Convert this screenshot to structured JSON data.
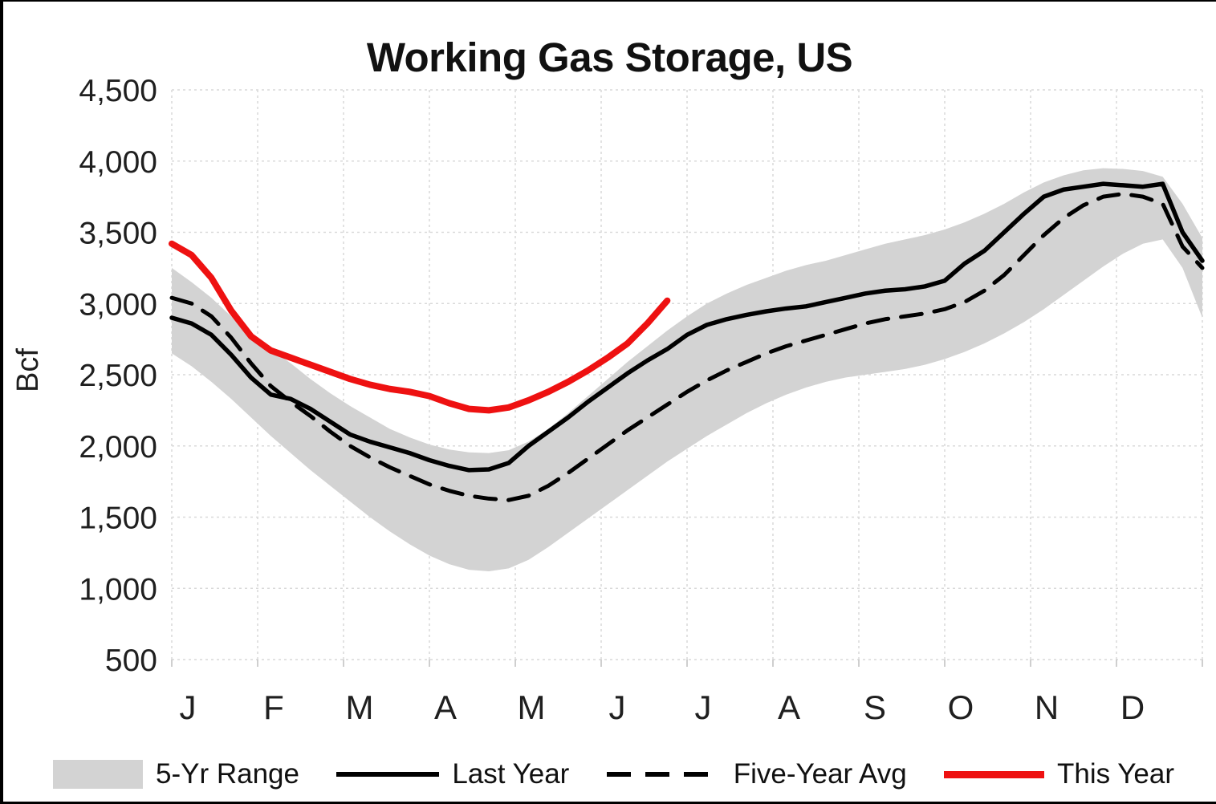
{
  "legend": [
    {
      "label": "5-Yr Range",
      "style": "band",
      "color": "#d3d3d3"
    },
    {
      "label": "Last Year",
      "style": "solid",
      "color": "#000000"
    },
    {
      "label": "Five-Year Avg",
      "style": "dashed",
      "color": "#000000"
    },
    {
      "label": "This Year",
      "style": "solid",
      "color": "#ee1111"
    }
  ],
  "chart_data": {
    "type": "line",
    "title": "Working Gas Storage, US",
    "ylabel": "Bcf",
    "ylim": [
      500,
      4500
    ],
    "y_tick_step": 500,
    "y_ticks": [
      "500",
      "1,000",
      "1,500",
      "2,000",
      "2,500",
      "3,000",
      "3,500",
      "4,000",
      "4,500"
    ],
    "x_ticks": [
      "J",
      "F",
      "M",
      "A",
      "M",
      "J",
      "J",
      "A",
      "S",
      "O",
      "N",
      "D"
    ],
    "x_unit": "weeks",
    "weeks": 52,
    "grid": true,
    "legend_position": "bottom",
    "band": {
      "name": "5-Yr Range",
      "color": "#d3d3d3",
      "upper": [
        3250,
        3150,
        3040,
        2910,
        2790,
        2680,
        2580,
        2470,
        2370,
        2280,
        2200,
        2120,
        2060,
        2010,
        1975,
        1955,
        1950,
        1970,
        2030,
        2120,
        2230,
        2350,
        2470,
        2590,
        2700,
        2810,
        2910,
        3000,
        3070,
        3130,
        3180,
        3230,
        3270,
        3300,
        3340,
        3380,
        3420,
        3450,
        3480,
        3520,
        3570,
        3630,
        3700,
        3780,
        3850,
        3900,
        3935,
        3950,
        3945,
        3930,
        3890,
        3700,
        3460
      ],
      "lower": [
        2650,
        2560,
        2450,
        2330,
        2200,
        2070,
        1950,
        1830,
        1720,
        1610,
        1500,
        1400,
        1310,
        1230,
        1170,
        1130,
        1120,
        1140,
        1200,
        1290,
        1390,
        1490,
        1590,
        1690,
        1790,
        1890,
        1980,
        2070,
        2150,
        2230,
        2300,
        2360,
        2410,
        2450,
        2480,
        2500,
        2520,
        2540,
        2570,
        2610,
        2660,
        2720,
        2790,
        2870,
        2960,
        3060,
        3160,
        3260,
        3350,
        3420,
        3450,
        3250,
        2900
      ]
    },
    "series": [
      {
        "name": "Last Year",
        "style": "solid",
        "color": "#000000",
        "width": 5.5,
        "values": [
          2900,
          2860,
          2780,
          2640,
          2480,
          2360,
          2330,
          2260,
          2170,
          2080,
          2030,
          1990,
          1950,
          1900,
          1860,
          1830,
          1835,
          1880,
          2000,
          2100,
          2200,
          2310,
          2410,
          2510,
          2600,
          2680,
          2780,
          2850,
          2890,
          2920,
          2945,
          2965,
          2980,
          3010,
          3040,
          3070,
          3090,
          3100,
          3120,
          3160,
          3280,
          3370,
          3500,
          3630,
          3750,
          3800,
          3820,
          3840,
          3830,
          3820,
          3840,
          3500,
          3300
        ]
      },
      {
        "name": "Five-Year Avg",
        "style": "dashed",
        "color": "#000000",
        "width": 5,
        "dash": "26 16",
        "values": [
          3040,
          3000,
          2910,
          2760,
          2580,
          2420,
          2310,
          2210,
          2100,
          2000,
          1920,
          1850,
          1790,
          1730,
          1685,
          1650,
          1630,
          1620,
          1650,
          1720,
          1810,
          1910,
          2010,
          2110,
          2200,
          2290,
          2380,
          2460,
          2530,
          2590,
          2650,
          2700,
          2740,
          2780,
          2820,
          2860,
          2890,
          2910,
          2930,
          2960,
          3010,
          3090,
          3200,
          3340,
          3480,
          3600,
          3690,
          3750,
          3770,
          3750,
          3700,
          3400,
          3250
        ]
      },
      {
        "name": "This Year",
        "style": "solid",
        "color": "#ee1111",
        "width": 8,
        "values": [
          3420,
          3340,
          3180,
          2950,
          2770,
          2670,
          2620,
          2570,
          2520,
          2470,
          2430,
          2400,
          2380,
          2350,
          2300,
          2260,
          2250,
          2270,
          2320,
          2380,
          2450,
          2530,
          2620,
          2720,
          2860,
          3020
        ]
      }
    ]
  }
}
